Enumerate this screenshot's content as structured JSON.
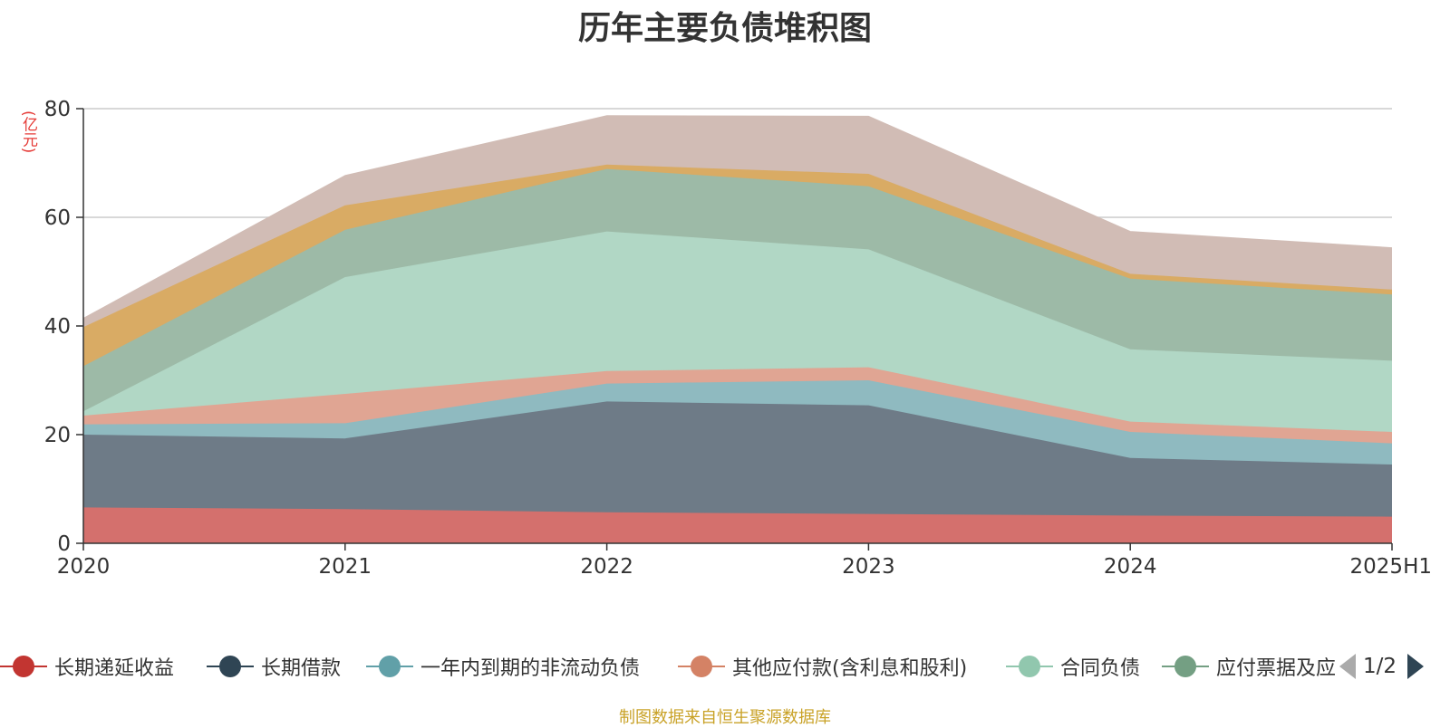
{
  "chart_data": {
    "type": "area",
    "stacked": true,
    "title": "历年主要负债堆积图",
    "y_unit": "(亿元)",
    "categories": [
      "2020",
      "2021",
      "2022",
      "2023",
      "2024",
      "2025H1"
    ],
    "y_ticks": [
      "0",
      "20",
      "40",
      "60",
      "80"
    ],
    "ylim": [
      0,
      80
    ],
    "grid": true,
    "legend_position": "bottom",
    "series": [
      {
        "name": "长期递延收益",
        "color": "#c23531",
        "fill": "#d4706d",
        "values": [
          6.6,
          6.3,
          5.7,
          5.4,
          5.1,
          4.9
        ]
      },
      {
        "name": "长期借款",
        "color": "#2f4554",
        "fill": "#6e7b87",
        "values": [
          13.4,
          13.0,
          20.4,
          20.0,
          10.6,
          9.6
        ]
      },
      {
        "name": "一年内到期的非流动负债",
        "color": "#61a0a8",
        "fill": "#8fbac0",
        "values": [
          1.9,
          2.8,
          3.3,
          4.6,
          4.8,
          3.9
        ]
      },
      {
        "name": "其他应付款(含利息和股利)",
        "color": "#d48265",
        "fill": "#e0a593",
        "values": [
          1.6,
          5.4,
          2.3,
          2.4,
          1.9,
          2.1
        ]
      },
      {
        "name": "合同负债",
        "color": "#91c7ae",
        "fill": "#b1d7c5",
        "values": [
          0.8,
          21.5,
          25.7,
          21.7,
          13.3,
          13.1
        ]
      },
      {
        "name": "应付票据及应付账款",
        "color": "#749f83",
        "fill": "#9dbaa7",
        "values": [
          8.3,
          8.7,
          11.5,
          11.6,
          13.0,
          12.2
        ]
      },
      {
        "name": "",
        "color": "#ca8622",
        "fill": "#d9ab64",
        "values": [
          7.2,
          4.5,
          0.8,
          2.3,
          0.9,
          0.9
        ]
      },
      {
        "name": "",
        "color": "#bda29a",
        "fill": "#d1bcb5",
        "values": [
          1.6,
          5.5,
          9.0,
          10.6,
          7.8,
          7.7
        ]
      }
    ]
  },
  "legend": {
    "visible_labels": [
      "长期递延收益",
      "长期借款",
      "一年内到期的非流动负债",
      "其他应付款(含利息和股利)",
      "合同负债",
      "应付票据及应"
    ],
    "page_indicator": "1/2"
  },
  "footer": {
    "source": "制图数据来自恒生聚源数据库"
  }
}
